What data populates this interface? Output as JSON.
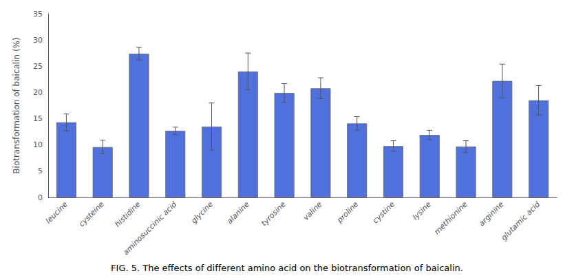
{
  "chart_data": {
    "type": "bar",
    "title": "FIG. 5. The effects of different amino acid on the biotransformation of baicalin.",
    "ylabel": "Biotransformation of baicalin (%)",
    "categories": [
      "leucine",
      "cysteine",
      "histidine",
      "aminosuccinic acid",
      "glycine",
      "alanine",
      "tyrosine",
      "valine",
      "proline",
      "cystine",
      "lysine",
      "methionine",
      "arginine",
      "glutamic acid"
    ],
    "values": [
      14.3,
      9.6,
      27.4,
      12.7,
      13.5,
      24.0,
      19.9,
      20.8,
      14.1,
      9.8,
      11.9,
      9.7,
      22.2,
      18.5
    ],
    "errors": [
      1.6,
      1.3,
      1.2,
      0.7,
      4.5,
      3.5,
      1.8,
      2.0,
      1.3,
      1.0,
      0.9,
      1.1,
      3.2,
      2.8
    ],
    "ylim": [
      0,
      35
    ],
    "yticks": [
      0,
      5,
      10,
      15,
      20,
      25,
      30,
      35
    ],
    "grid": false
  }
}
